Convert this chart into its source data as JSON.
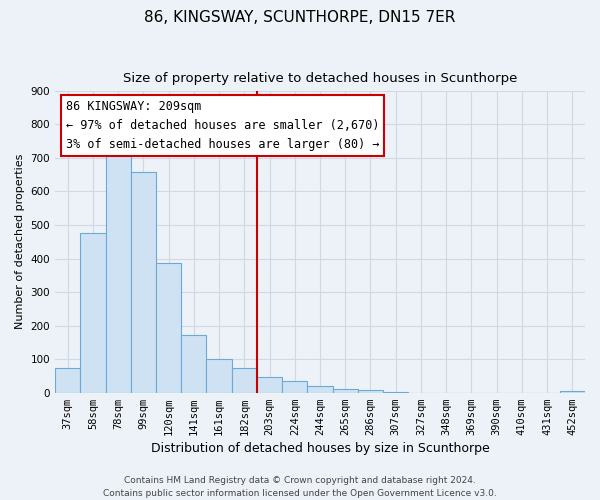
{
  "title": "86, KINGSWAY, SCUNTHORPE, DN15 7ER",
  "subtitle": "Size of property relative to detached houses in Scunthorpe",
  "xlabel": "Distribution of detached houses by size in Scunthorpe",
  "ylabel": "Number of detached properties",
  "bar_labels": [
    "37sqm",
    "58sqm",
    "78sqm",
    "99sqm",
    "120sqm",
    "141sqm",
    "161sqm",
    "182sqm",
    "203sqm",
    "224sqm",
    "244sqm",
    "265sqm",
    "286sqm",
    "307sqm",
    "327sqm",
    "348sqm",
    "369sqm",
    "390sqm",
    "410sqm",
    "431sqm",
    "452sqm"
  ],
  "bar_values": [
    75,
    475,
    730,
    658,
    388,
    173,
    99,
    75,
    46,
    35,
    20,
    10,
    7,
    3,
    0,
    0,
    0,
    0,
    0,
    0,
    5
  ],
  "bar_color": "#cfe2f3",
  "bar_edge_color": "#6aaad4",
  "vline_x": 7.5,
  "vline_color": "#cc0000",
  "annotation_line1": "86 KINGSWAY: 209sqm",
  "annotation_line2": "← 97% of detached houses are smaller (2,670)",
  "annotation_line3": "3% of semi-detached houses are larger (80) →",
  "annotation_box_edge_color": "#cc0000",
  "annotation_box_face_color": "#ffffff",
  "ylim": [
    0,
    900
  ],
  "yticks": [
    0,
    100,
    200,
    300,
    400,
    500,
    600,
    700,
    800,
    900
  ],
  "grid_color": "#d0d8e4",
  "background_color": "#edf2f8",
  "footer_line1": "Contains HM Land Registry data © Crown copyright and database right 2024.",
  "footer_line2": "Contains public sector information licensed under the Open Government Licence v3.0.",
  "title_fontsize": 11,
  "subtitle_fontsize": 9.5,
  "xlabel_fontsize": 9,
  "ylabel_fontsize": 8,
  "tick_fontsize": 7.5,
  "annotation_fontsize": 8.5,
  "footer_fontsize": 6.5
}
